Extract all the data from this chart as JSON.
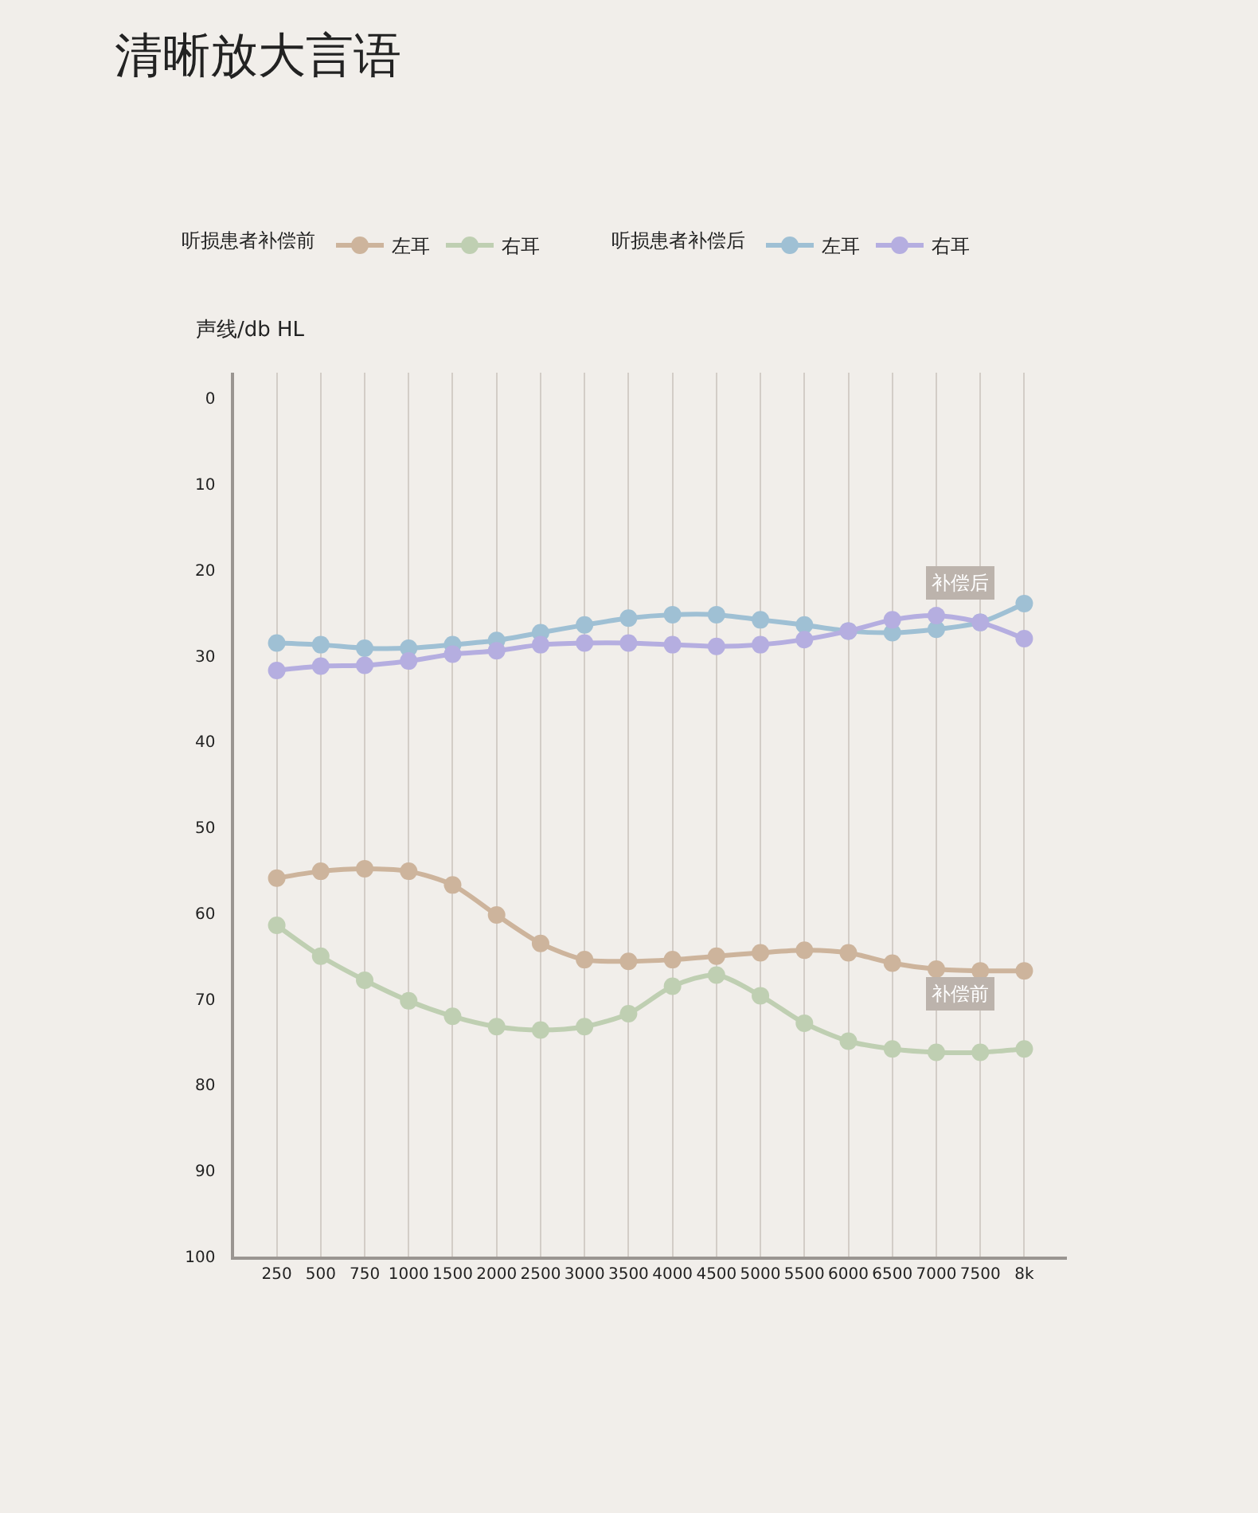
{
  "chart_data": {
    "type": "line",
    "title": "清晰放大言语",
    "ylabel": "声线/db HL",
    "legend_title": [
      "听损患者补偿前",
      "听损患者补偿后"
    ],
    "categories": [
      "250",
      "500",
      "750",
      "1000",
      "1500",
      "2000",
      "2500",
      "3000",
      "3500",
      "4000",
      "4500",
      "5000",
      "5500",
      "6000",
      "6500",
      "7000",
      "7500",
      "8k"
    ],
    "series": [
      {
        "name": "左耳",
        "color": "#cdb49c",
        "values": [
          55.9,
          55.1,
          54.8,
          55.1,
          56.7,
          60.2,
          63.5,
          65.4,
          65.6,
          65.4,
          65.0,
          64.6,
          64.3,
          64.6,
          65.8,
          66.5,
          66.7,
          66.7
        ]
      },
      {
        "name": "右耳",
        "color": "#bfcfb2",
        "values": [
          61.4,
          65.0,
          67.8,
          70.2,
          72.0,
          73.2,
          73.6,
          73.2,
          71.7,
          68.5,
          67.2,
          69.6,
          72.8,
          74.9,
          75.8,
          76.2,
          76.2,
          75.8
        ]
      },
      {
        "name": "左耳",
        "color": "#9fc0d4",
        "values": [
          28.5,
          28.7,
          29.1,
          29.1,
          28.7,
          28.2,
          27.3,
          26.4,
          25.6,
          25.2,
          25.2,
          25.8,
          26.4,
          27.1,
          27.3,
          26.9,
          26.1,
          23.9
        ]
      },
      {
        "name": "右耳",
        "color": "#b5aee0",
        "values": [
          31.7,
          31.2,
          31.1,
          30.6,
          29.8,
          29.4,
          28.7,
          28.5,
          28.5,
          28.7,
          28.9,
          28.7,
          28.1,
          27.1,
          25.8,
          25.3,
          26.1,
          28.0
        ]
      }
    ],
    "annotations": [
      "补偿后",
      "补偿前"
    ],
    "ylim": [
      100,
      -3
    ],
    "yticks": [
      0,
      10,
      20,
      30,
      40,
      50,
      60,
      70,
      80,
      90,
      100
    ],
    "grid": "x",
    "legend": "top",
    "marker": "circle",
    "line_style": "solid"
  }
}
